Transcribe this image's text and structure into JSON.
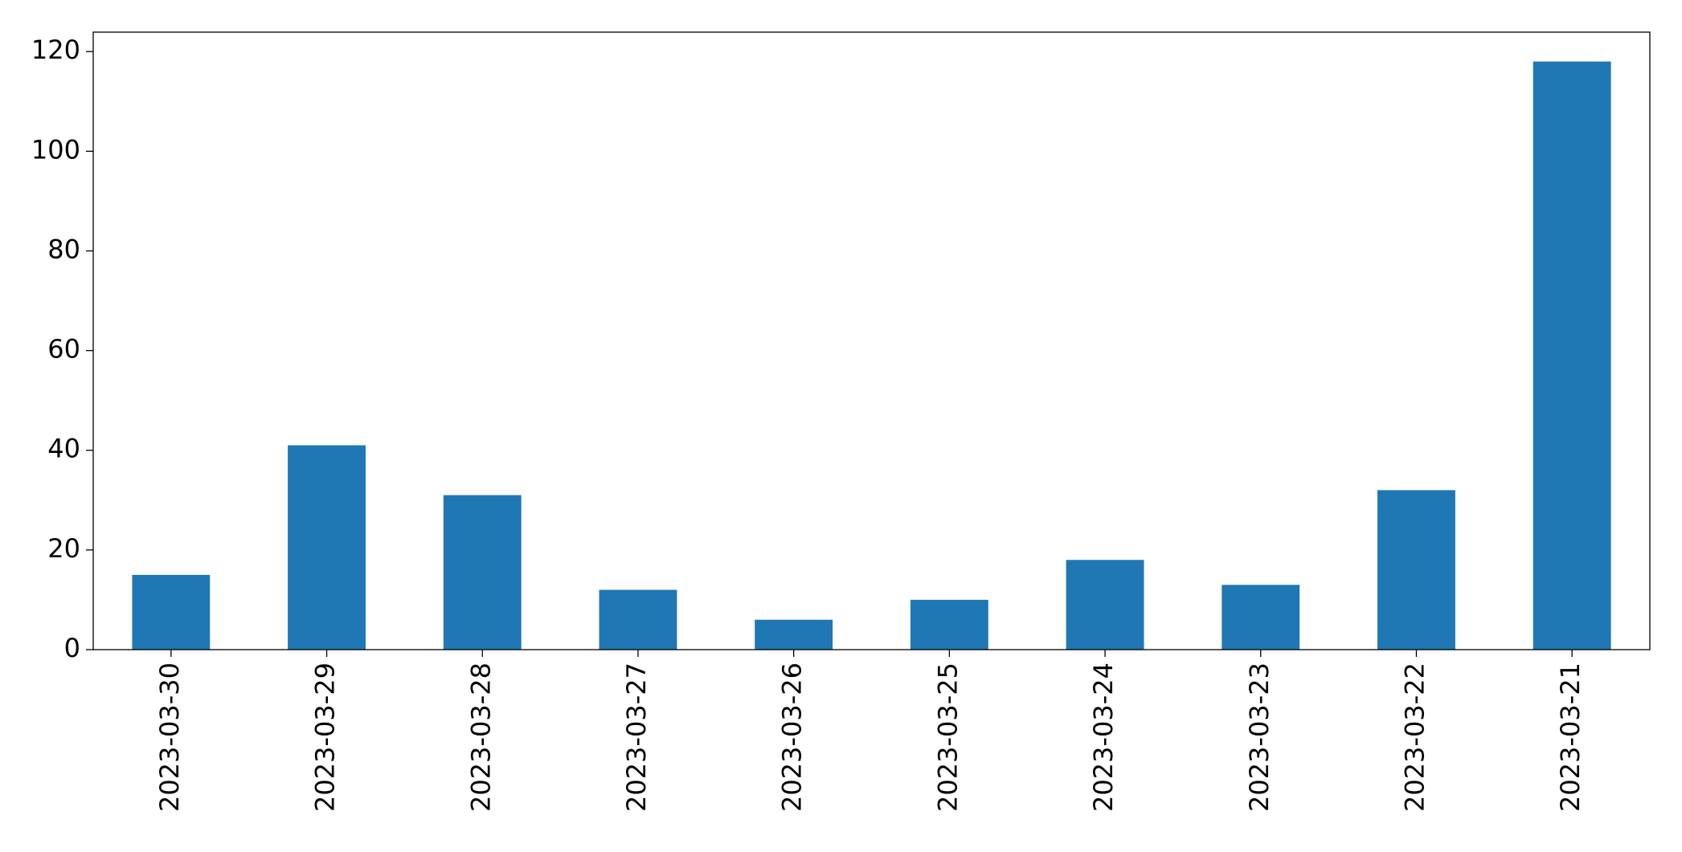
{
  "chart_data": {
    "type": "bar",
    "categories": [
      "2023-03-30",
      "2023-03-29",
      "2023-03-28",
      "2023-03-27",
      "2023-03-26",
      "2023-03-25",
      "2023-03-24",
      "2023-03-23",
      "2023-03-22",
      "2023-03-21"
    ],
    "values": [
      15,
      41,
      31,
      12,
      6,
      10,
      18,
      13,
      32,
      118
    ],
    "color": "#1f77b4",
    "ylim": [
      0,
      123.9
    ],
    "yticks": [
      0,
      20,
      40,
      60,
      80,
      100,
      120
    ],
    "grid": false
  }
}
